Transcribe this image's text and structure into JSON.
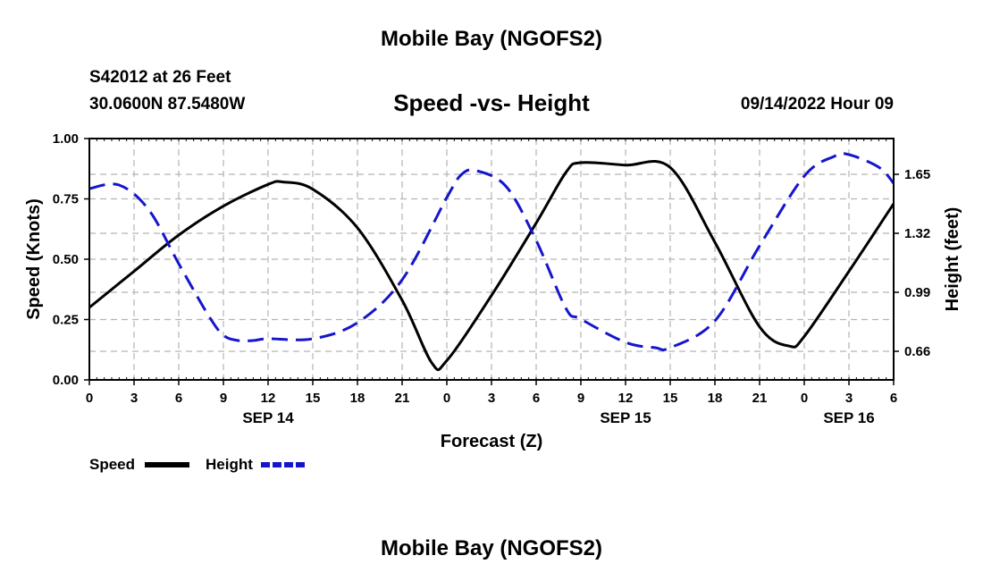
{
  "header": {
    "title": "Mobile Bay (NGOFS2)",
    "station": "S42012 at 26 Feet",
    "coords": "30.0600N  87.5480W",
    "subtitle": "Speed -vs- Height",
    "datetime": "09/14/2022 Hour 09"
  },
  "footer": {
    "title": "Mobile Bay (NGOFS2)"
  },
  "chart_data": {
    "type": "line",
    "title": "Speed -vs- Height",
    "xlabel": "Forecast (Z)",
    "ylabel": "Speed (Knots)",
    "y2label": "Height (feet)",
    "xlim": [
      0,
      54
    ],
    "ylim": [
      0,
      1
    ],
    "y2lim": [
      0.5,
      1.85
    ],
    "grid": true,
    "legend_position": "bottom-left",
    "x_ticks": [
      0,
      3,
      6,
      9,
      12,
      15,
      18,
      21,
      24,
      27,
      30,
      33,
      36,
      39,
      42,
      45,
      48,
      51,
      54
    ],
    "x_tick_labels": [
      "0",
      "3",
      "6",
      "9",
      "12",
      "15",
      "18",
      "21",
      "0",
      "3",
      "6",
      "9",
      "12",
      "15",
      "18",
      "21",
      "0",
      "3",
      "6"
    ],
    "date_labels": [
      {
        "x": 12,
        "label": "SEP 14"
      },
      {
        "x": 36,
        "label": "SEP 15"
      },
      {
        "x": 51,
        "label": "SEP 16"
      }
    ],
    "y_ticks": [
      0.0,
      0.25,
      0.5,
      0.75,
      1.0
    ],
    "y_tick_labels": [
      "0.00",
      "0.25",
      "0.50",
      "0.75",
      "1.00"
    ],
    "y2_ticks": [
      0.66,
      0.99,
      1.32,
      1.65
    ],
    "y2_tick_labels": [
      "0.66",
      "0.99",
      "1.32",
      "1.65"
    ],
    "series": [
      {
        "name": "Speed",
        "axis": "left",
        "color": "#000000",
        "dash": "solid",
        "x": [
          0,
          3,
          6,
          9,
          12,
          13,
          15,
          18,
          21,
          23,
          24,
          27,
          30,
          32,
          33,
          36,
          39,
          42,
          45,
          47,
          48,
          51,
          54
        ],
        "y": [
          0.3,
          0.45,
          0.6,
          0.72,
          0.81,
          0.82,
          0.79,
          0.63,
          0.33,
          0.07,
          0.08,
          0.35,
          0.65,
          0.86,
          0.9,
          0.89,
          0.88,
          0.57,
          0.22,
          0.14,
          0.18,
          0.45,
          0.73
        ]
      },
      {
        "name": "Height",
        "axis": "right",
        "color": "#1515cc",
        "dash": "dashed",
        "x": [
          0,
          2,
          4,
          6,
          8,
          9,
          10,
          11,
          12,
          15,
          18,
          21,
          24,
          25,
          26,
          28,
          30,
          32,
          33,
          36,
          38,
          39,
          42,
          45,
          48,
          50,
          51,
          53,
          54
        ],
        "y": [
          1.57,
          1.59,
          1.45,
          1.15,
          0.86,
          0.75,
          0.72,
          0.72,
          0.73,
          0.73,
          0.82,
          1.06,
          1.52,
          1.65,
          1.67,
          1.58,
          1.28,
          0.9,
          0.84,
          0.71,
          0.68,
          0.68,
          0.83,
          1.25,
          1.64,
          1.75,
          1.76,
          1.69,
          1.6
        ]
      }
    ]
  }
}
